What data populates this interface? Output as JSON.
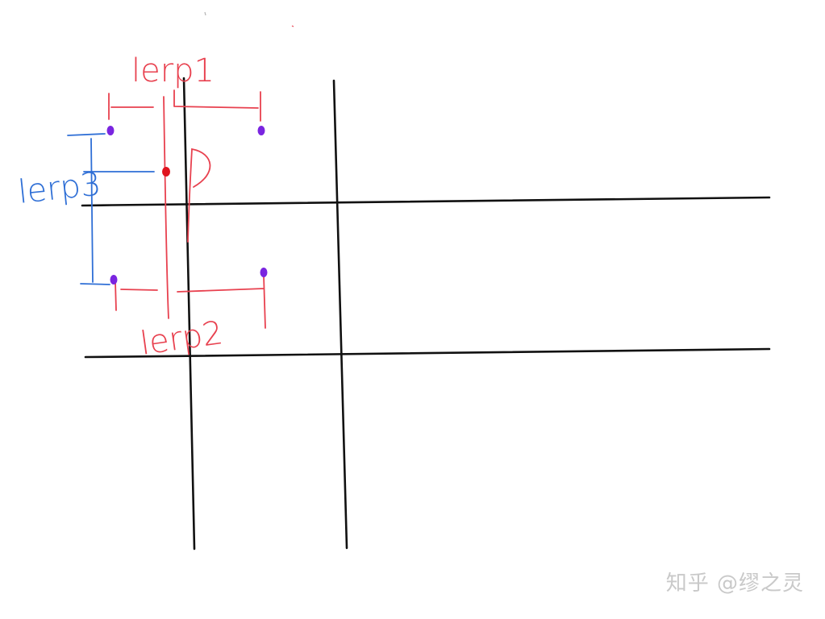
{
  "diagram": {
    "labels": {
      "lerp1": "lerp1",
      "lerp2": "lerp2",
      "lerp3": "lerp3",
      "point": "P"
    },
    "watermark": "知乎 @缪之灵",
    "colors": {
      "grid": "#111111",
      "red": "#e8414f",
      "blue": "#2f6fd6",
      "purple": "#7a25e0",
      "sample_point": "#e0141e",
      "watermark": "#c9c9c9"
    }
  }
}
